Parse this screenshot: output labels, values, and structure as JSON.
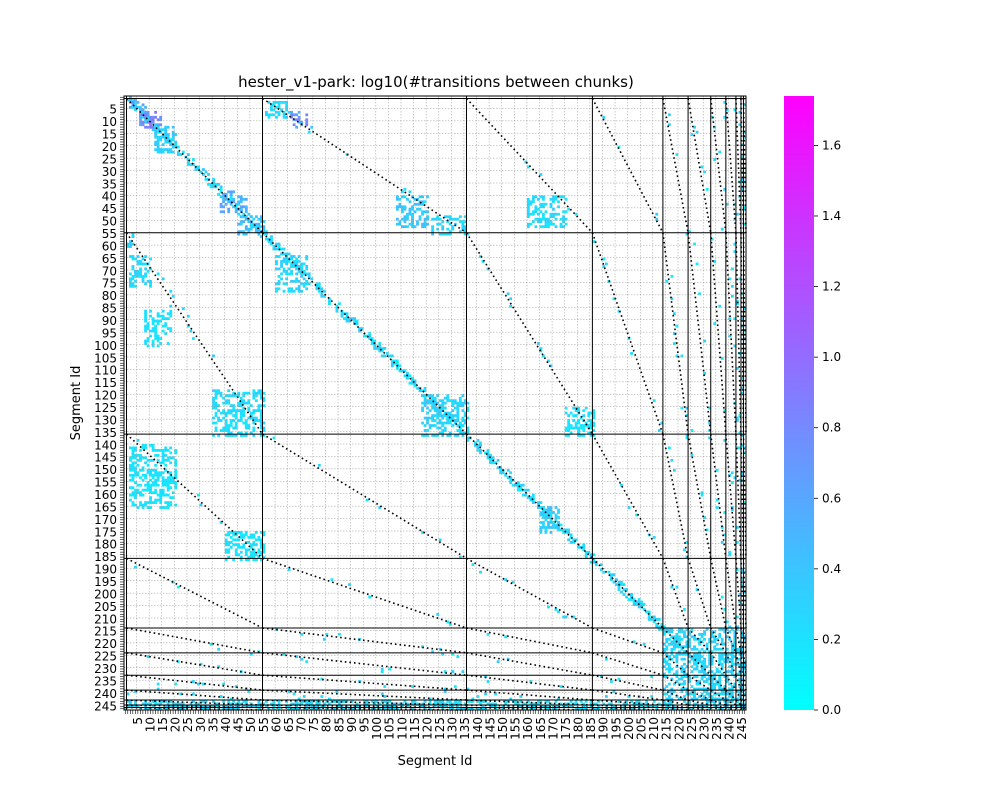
{
  "chart_data": {
    "type": "heatmap",
    "title": "hester_v1-park: log10(#transitions between chunks)",
    "xlabel": "Segment Id",
    "ylabel": "Segment Id",
    "n_segments": 247,
    "x_tick_labels": [
      "5",
      "10",
      "15",
      "20",
      "25",
      "30",
      "35",
      "40",
      "45",
      "50",
      "55",
      "60",
      "65",
      "70",
      "75",
      "80",
      "85",
      "90",
      "95",
      "100",
      "105",
      "110",
      "115",
      "120",
      "125",
      "130",
      "135",
      "140",
      "145",
      "150",
      "155",
      "160",
      "165",
      "170",
      "175",
      "180",
      "185",
      "190",
      "195",
      "200",
      "205",
      "210",
      "215",
      "220",
      "225",
      "230",
      "235",
      "240",
      "245"
    ],
    "y_tick_labels": [
      "5",
      "10",
      "15",
      "20",
      "25",
      "30",
      "35",
      "40",
      "45",
      "50",
      "55",
      "60",
      "65",
      "70",
      "75",
      "80",
      "85",
      "90",
      "95",
      "100",
      "105",
      "110",
      "115",
      "120",
      "125",
      "130",
      "135",
      "140",
      "145",
      "150",
      "155",
      "160",
      "165",
      "170",
      "175",
      "180",
      "185",
      "190",
      "195",
      "200",
      "205",
      "210",
      "215",
      "220",
      "225",
      "230",
      "235",
      "240",
      "245"
    ],
    "chunk_boundaries": [
      1,
      55,
      136,
      186,
      214,
      224,
      233,
      239,
      243,
      245,
      246,
      247
    ],
    "colorbar": {
      "min": 0.0,
      "max": 1.74,
      "tick_labels": [
        "0.0",
        "0.2",
        "0.4",
        "0.6",
        "0.8",
        "1.0",
        "1.2",
        "1.4",
        "1.6"
      ],
      "colormap": "cool",
      "color_low": "#00ffff",
      "color_high": "#ff00ff"
    },
    "clusters": [
      {
        "i0": 1,
        "i1": 8,
        "j0": 1,
        "j1": 6,
        "v": 0.7
      },
      {
        "i0": 6,
        "i1": 14,
        "j0": 6,
        "j1": 12,
        "v": 0.85
      },
      {
        "i0": 12,
        "i1": 20,
        "j0": 12,
        "j1": 22,
        "v": 0.35
      },
      {
        "i0": 38,
        "i1": 48,
        "j0": 38,
        "j1": 46,
        "v": 0.6
      },
      {
        "i0": 45,
        "i1": 55,
        "j0": 48,
        "j1": 55,
        "v": 0.45
      },
      {
        "i0": 1,
        "i1": 3,
        "j0": 55,
        "j1": 60,
        "v": 0.3
      },
      {
        "i0": 2,
        "i1": 10,
        "j0": 64,
        "j1": 76,
        "v": 0.25
      },
      {
        "i0": 8,
        "i1": 18,
        "j0": 86,
        "j1": 100,
        "v": 0.2
      },
      {
        "i0": 35,
        "i1": 55,
        "j0": 118,
        "j1": 136,
        "v": 0.25
      },
      {
        "i0": 2,
        "i1": 20,
        "j0": 140,
        "j1": 165,
        "v": 0.2
      },
      {
        "i0": 40,
        "i1": 55,
        "j0": 175,
        "j1": 186,
        "v": 0.2
      },
      {
        "i0": 56,
        "i1": 64,
        "j0": 2,
        "j1": 8,
        "v": 0.25
      },
      {
        "i0": 66,
        "i1": 72,
        "j0": 6,
        "j1": 12,
        "v": 0.8
      },
      {
        "i0": 60,
        "i1": 72,
        "j0": 64,
        "j1": 78,
        "v": 0.3
      },
      {
        "i0": 108,
        "i1": 120,
        "j0": 40,
        "j1": 52,
        "v": 0.4
      },
      {
        "i0": 122,
        "i1": 136,
        "j0": 48,
        "j1": 55,
        "v": 0.3
      },
      {
        "i0": 118,
        "i1": 136,
        "j0": 120,
        "j1": 136,
        "v": 0.3
      },
      {
        "i0": 160,
        "i1": 175,
        "j0": 40,
        "j1": 52,
        "v": 0.25
      },
      {
        "i0": 165,
        "i1": 172,
        "j0": 165,
        "j1": 175,
        "v": 0.35
      },
      {
        "i0": 175,
        "i1": 186,
        "j0": 125,
        "j1": 136,
        "v": 0.2
      },
      {
        "i0": 1,
        "i1": 55,
        "j0": 243,
        "j1": 247,
        "v": 0.3
      },
      {
        "i0": 56,
        "i1": 136,
        "j0": 243,
        "j1": 247,
        "v": 0.25
      },
      {
        "i0": 137,
        "i1": 214,
        "j0": 243,
        "j1": 247,
        "v": 0.2
      },
      {
        "i0": 214,
        "i1": 247,
        "j0": 214,
        "j1": 247,
        "v": 0.3
      }
    ]
  }
}
